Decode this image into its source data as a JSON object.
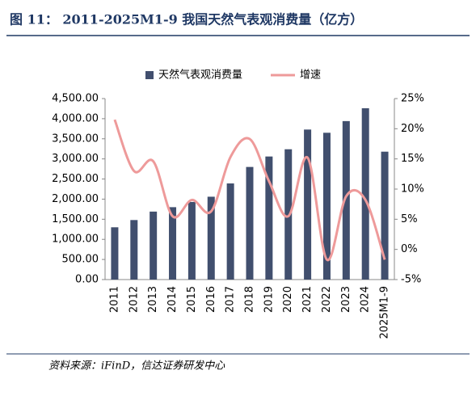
{
  "chart_data": {
    "type": "bar-line",
    "title": "图 11： 2011-2025M1-9 我国天然气表观消费量（亿方）",
    "source": "资料来源：iFinD，信达证券研发中心",
    "categories": [
      "2011",
      "2012",
      "2013",
      "2014",
      "2015",
      "2016",
      "2017",
      "2018",
      "2019",
      "2020",
      "2021",
      "2022",
      "2023",
      "2024",
      "2025M1-9"
    ],
    "series": [
      {
        "name": "天然气表观消费量",
        "type": "bar",
        "color": "#414f6e",
        "values": [
          1300,
          1480,
          1690,
          1800,
          1930,
          2060,
          2390,
          2800,
          3060,
          3240,
          3730,
          3650,
          3940,
          4260,
          3180
        ]
      },
      {
        "name": "增速",
        "type": "line",
        "axis": "y2",
        "color": "#ee9a9a",
        "values": [
          21.5,
          13.0,
          14.6,
          5.5,
          8.2,
          6.3,
          15.3,
          18.3,
          11.3,
          5.5,
          15.2,
          -1.7,
          8.8,
          8.2,
          -1.7
        ]
      }
    ],
    "ylim": [
      0,
      4500
    ],
    "yticks": [
      {
        "value": 0,
        "label": "0.00"
      },
      {
        "value": 500,
        "label": "500.00"
      },
      {
        "value": 1000,
        "label": "1,000.00"
      },
      {
        "value": 1500,
        "label": "1,500.00"
      },
      {
        "value": 2000,
        "label": "2,000.00"
      },
      {
        "value": 2500,
        "label": "2,500.00"
      },
      {
        "value": 3000,
        "label": "3,000.00"
      },
      {
        "value": 3500,
        "label": "3,500.00"
      },
      {
        "value": 4000,
        "label": "4,000.00"
      },
      {
        "value": 4500,
        "label": "4,500.00"
      }
    ],
    "y2lim": [
      -5,
      25
    ],
    "y2ticks": [
      {
        "value": -5,
        "label": "-5%"
      },
      {
        "value": 0,
        "label": "0%"
      },
      {
        "value": 5,
        "label": "5%"
      },
      {
        "value": 10,
        "label": "10%"
      },
      {
        "value": 15,
        "label": "15%"
      },
      {
        "value": 20,
        "label": "20%"
      },
      {
        "value": 25,
        "label": "25%"
      }
    ],
    "grid": false
  }
}
